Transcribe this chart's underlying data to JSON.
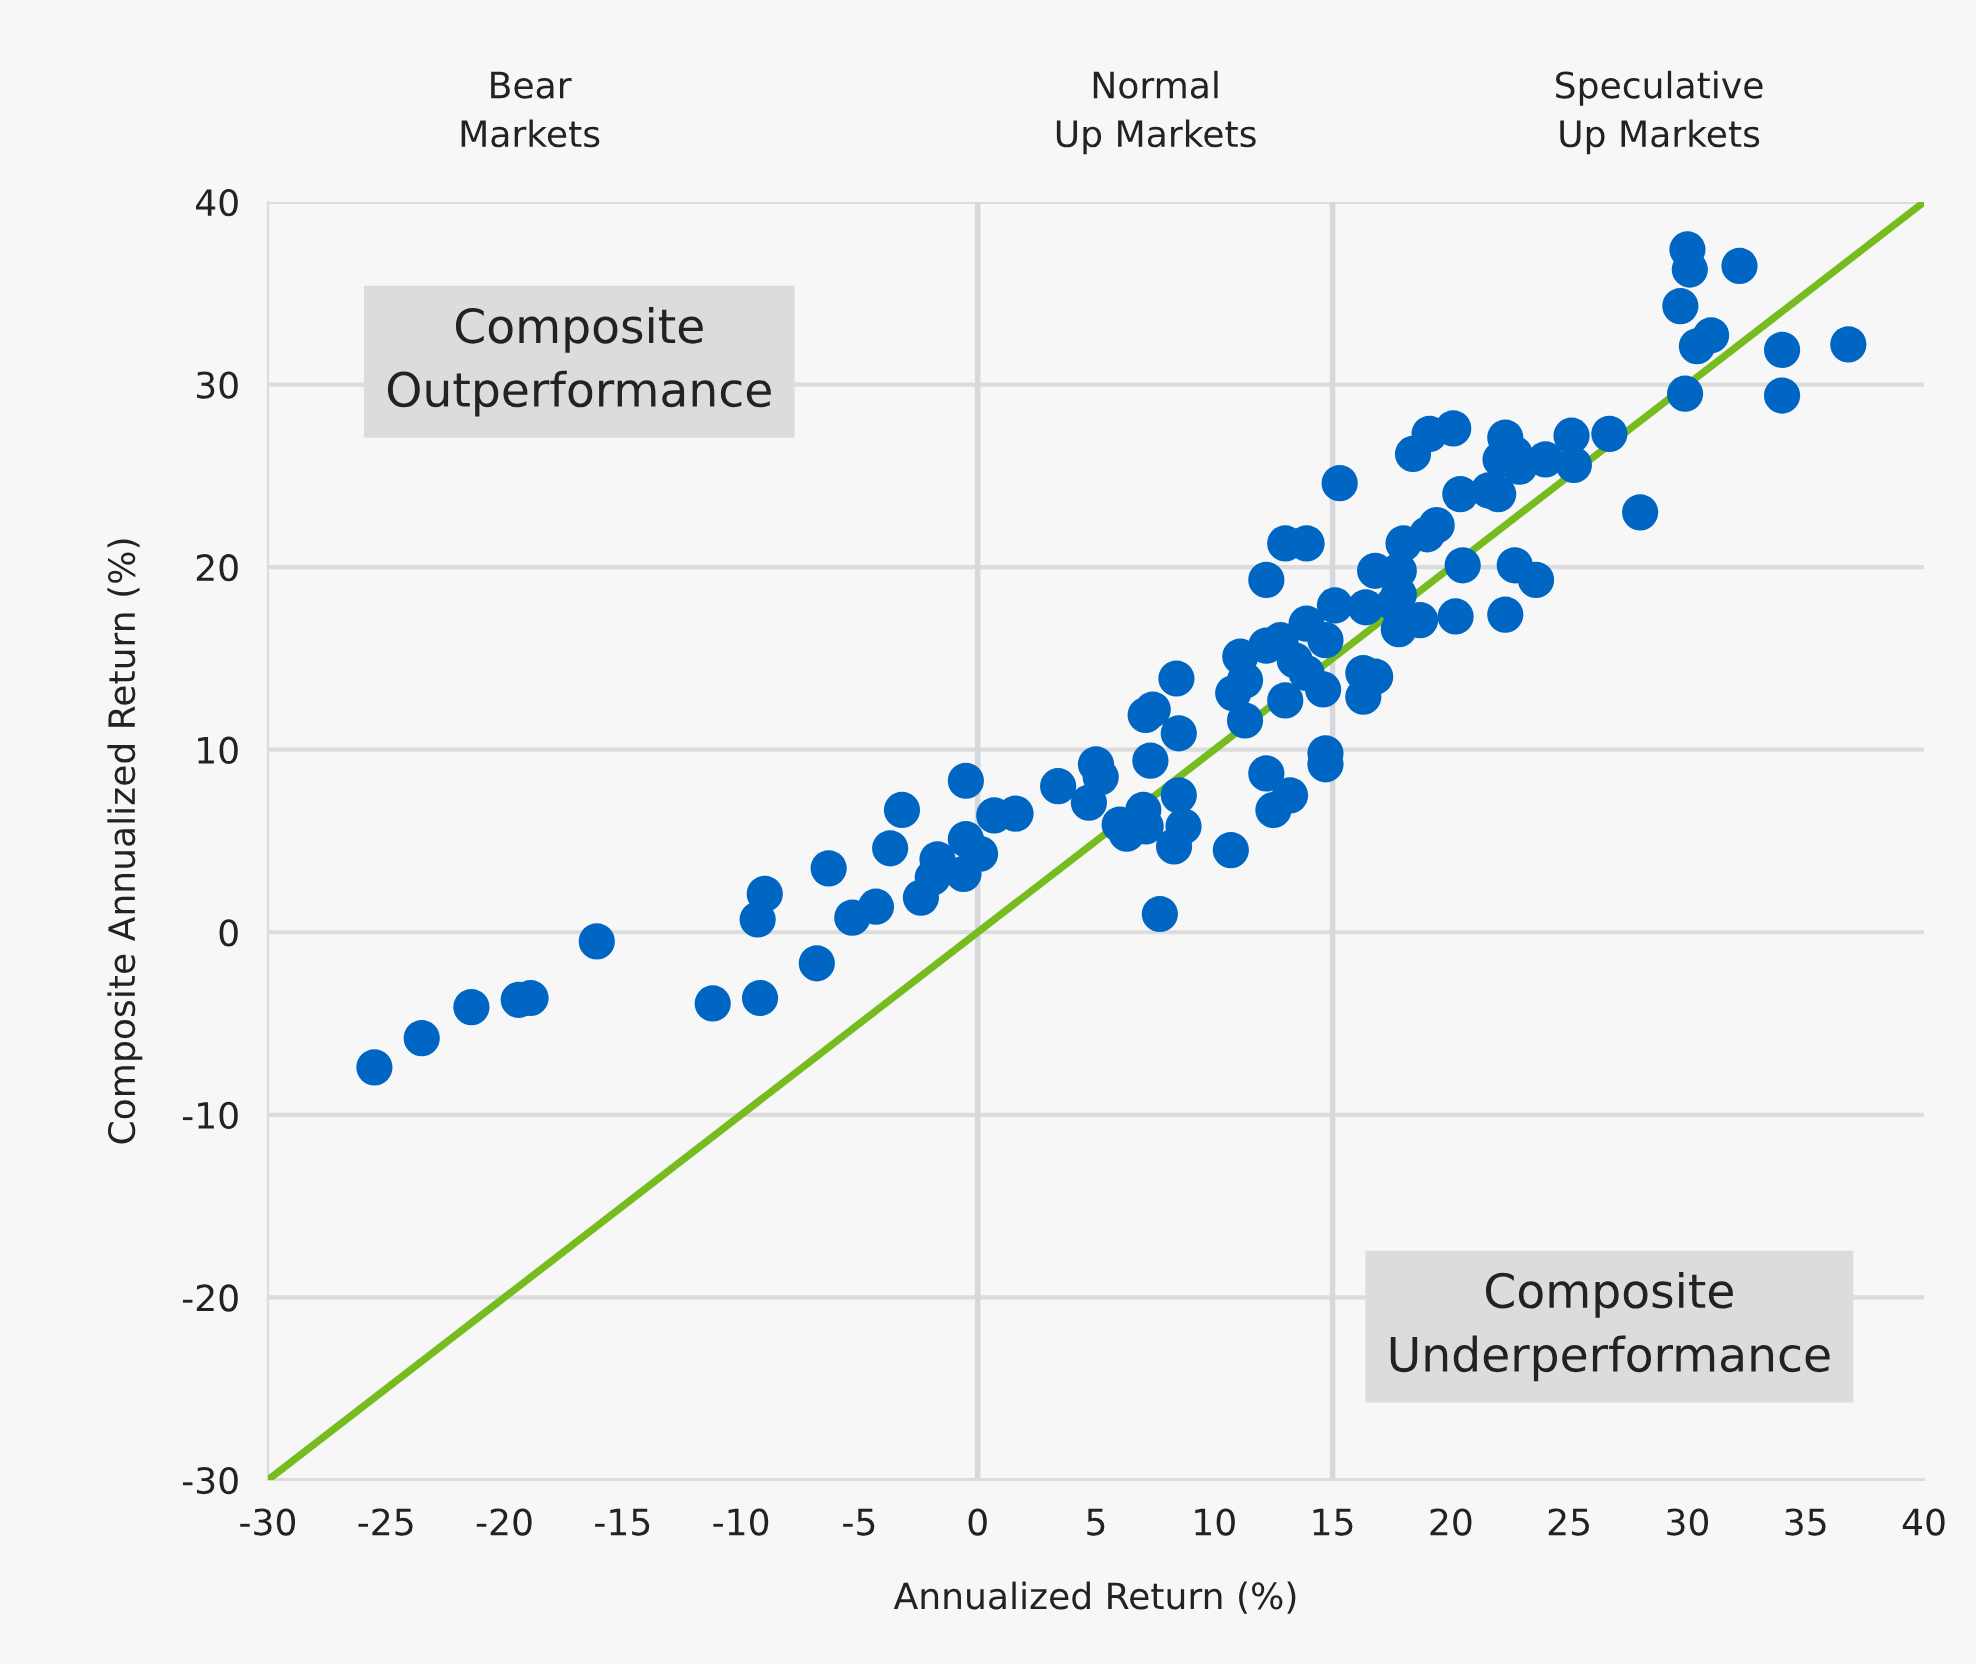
{
  "chart_data": {
    "type": "scatter",
    "xlabel": "Annualized Return (%)",
    "ylabel": "Composite Annualized Return (%)",
    "xlim": [
      -30,
      40
    ],
    "xticks": [
      -30,
      -25,
      -20,
      -15,
      -10,
      -5,
      0,
      5,
      10,
      15,
      20,
      25,
      30,
      35,
      40
    ],
    "ylim": [
      -30,
      40
    ],
    "yticks": [
      -30,
      -20,
      -10,
      0,
      10,
      20,
      30,
      40
    ],
    "grid": "y",
    "marker": "circle",
    "ref_lines": [
      {
        "axis": "x",
        "value": 0,
        "color": "#d5d9de"
      },
      {
        "axis": "x",
        "value": 15,
        "color": "#d5d9de"
      }
    ],
    "annotations": [
      "Bear\nMarkets",
      "Normal\nUp Markets",
      "Speculative\nUp Markets",
      "Composite\nOutperformance",
      "Composite\nUnderperformance"
    ],
    "series": [
      {
        "color": "#0066c4",
        "x": [
          -25.5,
          -23.5,
          -21.4,
          -19.4,
          -18.9,
          -16.1,
          -11.2,
          -9.2,
          -9.3,
          -9.0,
          -6.8,
          -6.3,
          -5.3,
          -4.3,
          -3.7,
          -3.2,
          -2.4,
          -1.9,
          -1.7,
          -0.6,
          -0.5,
          -0.5,
          0.1,
          0.7,
          1.6,
          3.4,
          4.7,
          5.0,
          5.2,
          6.0,
          7.1,
          6.3,
          7.0,
          7.3,
          7.1,
          7.4,
          8.4,
          8.5,
          8.5,
          8.7,
          8.3,
          7.7,
          10.7,
          12.2,
          12.5,
          13.2,
          14.7,
          14.7,
          10.8,
          11.3,
          11.1,
          12.2,
          12.8,
          13.4,
          11.3,
          13.0,
          14.6,
          13.9,
          13.9,
          14.7,
          15.1,
          16.3,
          16.8,
          16.3,
          12.2,
          13.0,
          13.9,
          15.3,
          16.8,
          17.8,
          17.8,
          16.4,
          17.6,
          18.7,
          17.8,
          18.0,
          19.0,
          19.4,
          18.4,
          19.1,
          20.1,
          20.4,
          20.5,
          20.2,
          21.6,
          22.0,
          22.3,
          22.1,
          22.7,
          22.9,
          22.7,
          23.6,
          22.3,
          24.0,
          25.1,
          25.2,
          26.7,
          28.0,
          29.7,
          30.0,
          30.1,
          32.2,
          31.0,
          30.4,
          34.0,
          36.8,
          29.9,
          34.0
        ],
        "values": [
          -7.4,
          -5.8,
          -4.1,
          -3.7,
          -3.6,
          -0.5,
          -3.9,
          -3.6,
          0.7,
          2.1,
          -1.7,
          3.5,
          0.8,
          1.4,
          4.6,
          6.7,
          1.9,
          3.0,
          4.0,
          3.2,
          8.3,
          5.1,
          4.3,
          6.4,
          6.5,
          8.0,
          7.1,
          9.2,
          8.5,
          5.9,
          5.8,
          5.4,
          6.7,
          9.4,
          11.9,
          12.2,
          13.9,
          10.9,
          7.5,
          5.8,
          4.7,
          1.0,
          4.5,
          8.7,
          6.7,
          7.5,
          9.8,
          9.2,
          13.1,
          11.6,
          15.1,
          15.7,
          16.0,
          14.9,
          13.8,
          12.7,
          13.3,
          14.2,
          16.9,
          16.0,
          17.9,
          14.2,
          14.0,
          12.9,
          19.3,
          21.3,
          21.3,
          24.6,
          19.8,
          19.8,
          18.5,
          17.8,
          18.0,
          17.1,
          16.6,
          21.3,
          21.8,
          22.3,
          26.2,
          27.3,
          27.6,
          24.0,
          20.1,
          17.3,
          24.2,
          24.0,
          27.1,
          25.9,
          26.2,
          25.5,
          20.1,
          19.3,
          17.4,
          25.9,
          27.2,
          25.6,
          27.3,
          23.0,
          34.3,
          37.4,
          36.3,
          36.5,
          32.7,
          32.1,
          31.9,
          32.2,
          29.5,
          29.4
        ]
      },
      {
        "type": "line",
        "color": "#77bc1f",
        "x": [
          -30,
          40
        ],
        "values": [
          -30,
          40
        ],
        "marker": "none"
      }
    ]
  }
}
